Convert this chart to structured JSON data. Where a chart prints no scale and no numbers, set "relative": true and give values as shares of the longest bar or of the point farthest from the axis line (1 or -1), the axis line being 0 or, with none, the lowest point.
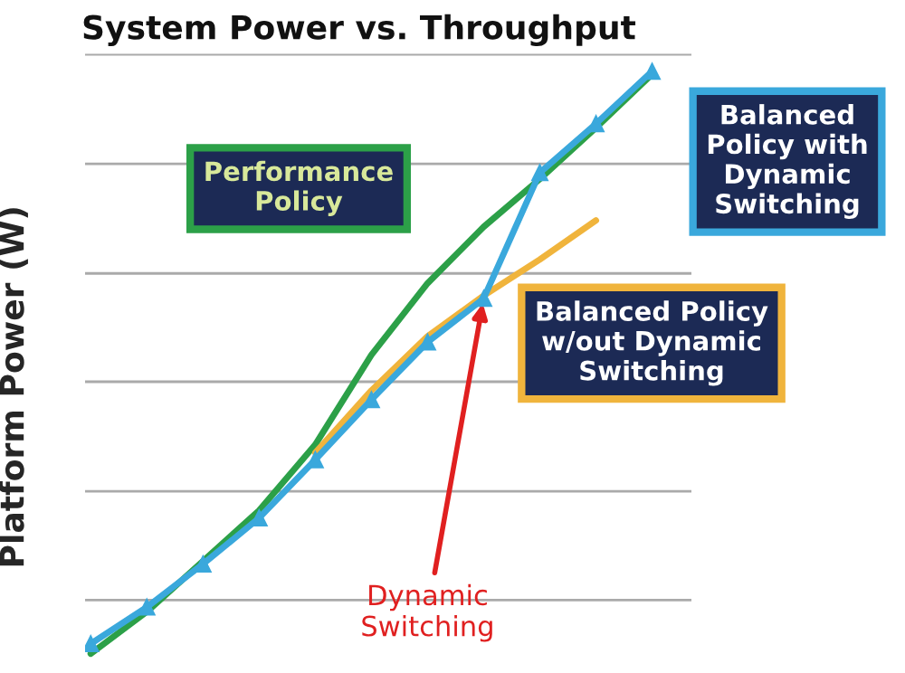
{
  "chart_data": {
    "type": "line",
    "title": "System Power vs. Throughput",
    "ylabel": "Platform Power (W)",
    "relative": true,
    "grid": "y",
    "tick_labels": false,
    "categories": [
      null,
      null,
      null,
      null,
      null,
      null,
      null,
      null,
      null,
      null,
      null
    ],
    "series": [
      {
        "name": "Performance Policy",
        "color": "#2ca048",
        "values": [
          0,
          0.072,
          0.159,
          0.246,
          0.359,
          0.513,
          0.636,
          0.733,
          0.815,
          0.903,
          0.995
        ]
      },
      {
        "name": "Balanced Policy w/out Dynamic Switching",
        "color": "#f0b43c",
        "values": [
          null,
          null,
          null,
          null,
          0.345,
          0.452,
          0.545,
          0.615,
          0.677,
          0.744,
          null
        ]
      },
      {
        "name": "Balanced Policy with Dynamic Switching",
        "color": "#3aa8dc",
        "marker": "triangle",
        "values": [
          0.017,
          0.08,
          0.154,
          0.233,
          0.333,
          0.436,
          0.535,
          0.61,
          0.826,
          0.91,
          1.0
        ]
      }
    ],
    "annotations": [
      "Dynamic Switching"
    ]
  }
}
